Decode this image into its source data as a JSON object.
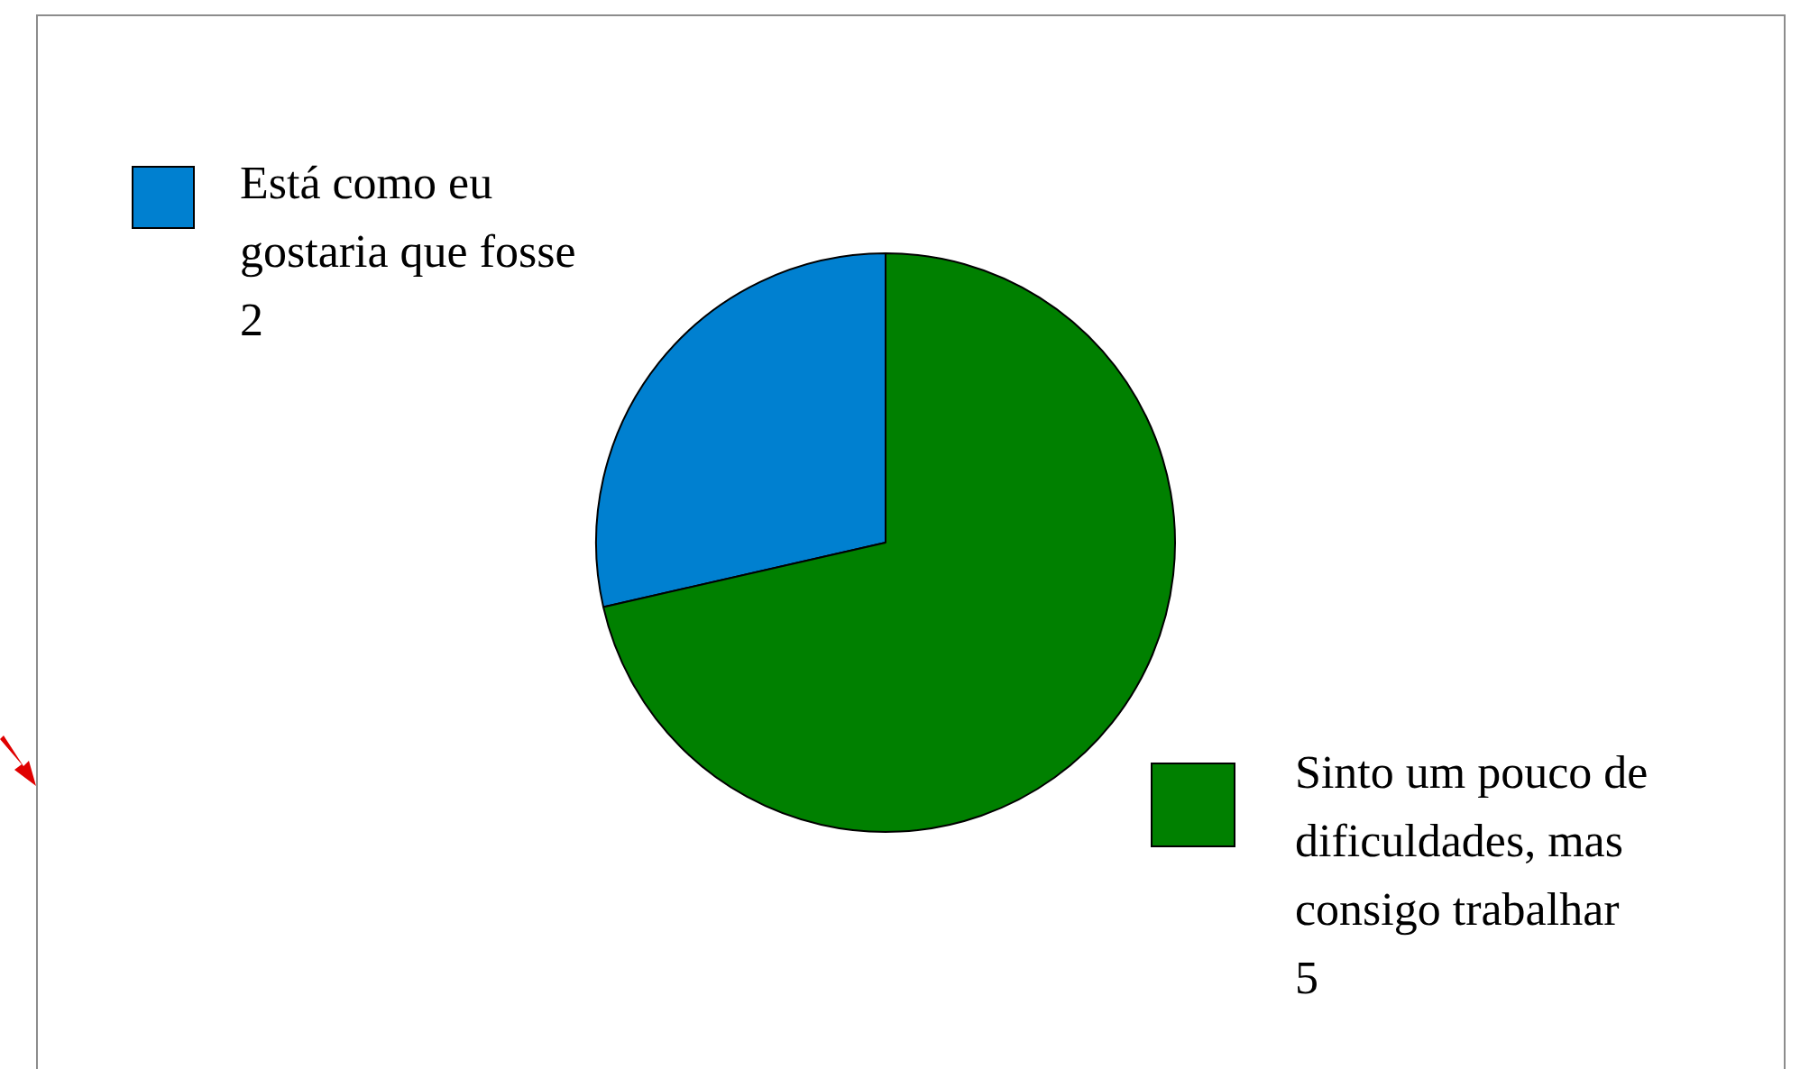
{
  "chart_data": {
    "type": "pie",
    "categories": [
      "Está como eu gostaria que fosse",
      "Sinto um pouco de dificuldades, mas consigo trabalhar"
    ],
    "values": [
      2,
      5
    ],
    "colors": [
      "#0080d0",
      "#008000"
    ],
    "data_labels": true,
    "legend": "bottom right"
  }
}
